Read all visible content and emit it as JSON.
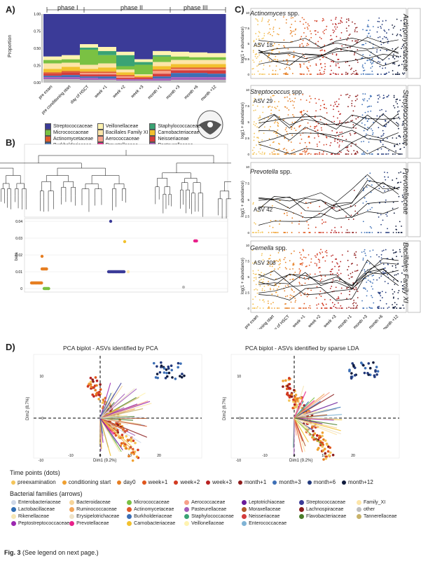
{
  "figure": {
    "caption_label": "Fig. 3",
    "caption_text": "(See legend on next page.)"
  },
  "panelA": {
    "label": "A)",
    "phases": [
      "phase I",
      "phase II",
      "phase III"
    ],
    "ylabel": "Proportion",
    "yticks": [
      "0.00",
      "0.25",
      "0.50",
      "0.75",
      "1.00"
    ],
    "xticks": [
      "pre exam",
      "pre conditioning start",
      "day of HSCT",
      "week +1",
      "week +2",
      "week +3",
      "month +1",
      "month +3",
      "month +6",
      "month +12"
    ],
    "legend": [
      {
        "name": "Streptococcaceae",
        "color": "#3b3b98"
      },
      {
        "name": "Veillonellaceae",
        "color": "#fff3b0"
      },
      {
        "name": "Staphylococcaceae",
        "color": "#3aa374"
      },
      {
        "name": "Micrococcaceae",
        "color": "#7ac143"
      },
      {
        "name": "Bacillales Family XI",
        "color": "#fde5a8"
      },
      {
        "name": "Carnobacteriaceae",
        "color": "#f2c12e"
      },
      {
        "name": "Actinomycetaceae",
        "color": "#e05a2b"
      },
      {
        "name": "Aerococcaceae",
        "color": "#f7a08a"
      },
      {
        "name": "Neisseriaceae",
        "color": "#d43c3c"
      },
      {
        "name": "Burkholderiaceae",
        "color": "#3d6fb6"
      },
      {
        "name": "Prevotellaceae",
        "color": "#e8208a"
      },
      {
        "name": "Pasteurellaceae",
        "color": "#a45dba"
      },
      {
        "name": "other",
        "color": "#bdbdbd"
      }
    ]
  },
  "panelB": {
    "label": "B)",
    "ylabel": "beta",
    "yticks": [
      "0",
      "0.01",
      "0.02",
      "0.03",
      "0.04"
    ]
  },
  "panelC": {
    "label": "C)",
    "ylabel": "log(1 + abundance)",
    "facets": [
      {
        "title_italic": "Actinomyces",
        "title_rest": " spp.",
        "asv": "ASV 18",
        "family": "Actinomycetaceae",
        "yticks": [
          "0",
          "2.5",
          "5",
          "7.5",
          "10"
        ]
      },
      {
        "title_italic": "Streptococcus",
        "title_rest": " spp.",
        "asv": "ASV 29",
        "family": "Streptococcaceae",
        "yticks": [
          "0",
          "2.5",
          "5",
          "7.5",
          "10"
        ]
      },
      {
        "title_italic": "Prevotella",
        "title_rest": " spp.",
        "asv": "ASV 42",
        "family": "Prevotellaceae",
        "yticks": [
          "0",
          "2.5",
          "5",
          "7.5",
          "10"
        ]
      },
      {
        "title_italic": "Gemella",
        "title_rest": " spp.",
        "asv": "ASV 208",
        "family": "Bacillales Family XI",
        "yticks": [
          "0",
          "2.5",
          "5",
          "7.5",
          "10"
        ]
      }
    ],
    "xticks": [
      "pre exam",
      "pre conditioning start",
      "day of HSCT",
      "week +1",
      "week +2",
      "week +3",
      "month +1",
      "month +3",
      "month +6",
      "month +12"
    ]
  },
  "panelD": {
    "label": "D)",
    "left_title": "PCA biplot - ASVs identified by PCA",
    "right_title": "PCA biplot - ASVs identified by sparse LDA",
    "xlabel": "Dim1 (9.2%)",
    "ylabel": "Dim2 (8.7%)",
    "xticks": [
      "-10",
      "0",
      "10",
      "20"
    ],
    "yticks": [
      "10",
      "0",
      "-10"
    ],
    "timepoints_title": "Time points (dots)",
    "timepoints": [
      {
        "name": "preexamination",
        "color": "#f4c55a"
      },
      {
        "name": "conditioning start",
        "color": "#f0a030"
      },
      {
        "name": "day0",
        "color": "#e67e22"
      },
      {
        "name": "week+1",
        "color": "#e0561c"
      },
      {
        "name": "week+2",
        "color": "#d23a21"
      },
      {
        "name": "week+3",
        "color": "#b82121"
      },
      {
        "name": "month+1",
        "color": "#8e1b1b"
      },
      {
        "name": "month+3",
        "color": "#3d6fb6"
      },
      {
        "name": "month+6",
        "color": "#233a7d"
      },
      {
        "name": "month+12",
        "color": "#0e1a3c"
      }
    ],
    "families_title": "Bacterial families (arrows)",
    "families": [
      {
        "name": "Enterobacteriaceae",
        "color": "#cfd8e8"
      },
      {
        "name": "Bacteroidaceae",
        "color": "#f7d59a"
      },
      {
        "name": "Micrococcaceae",
        "color": "#7ac143"
      },
      {
        "name": "Aerococcaceae",
        "color": "#f7a08a"
      },
      {
        "name": "Leptotrichiaceae",
        "color": "#6a1b9a"
      },
      {
        "name": "Streptococcaceae",
        "color": "#3b3b98"
      },
      {
        "name": "Family_XI",
        "color": "#fde5a8"
      },
      {
        "name": "Lactobacillaceae",
        "color": "#2f6db4"
      },
      {
        "name": "Ruminococcaceae",
        "color": "#f2a65a"
      },
      {
        "name": "Actinomycetaceae",
        "color": "#e05a2b"
      },
      {
        "name": "Pasteurellaceae",
        "color": "#a45dba"
      },
      {
        "name": "Moraxellaceae",
        "color": "#b05a2b"
      },
      {
        "name": "Lachnospiraceae",
        "color": "#8a1c1c"
      },
      {
        "name": "other",
        "color": "#bdbdbd"
      },
      {
        "name": "Rikenellaceae",
        "color": "#f6e6b4"
      },
      {
        "name": "Erysipelotrichaceae",
        "color": "#efe3c8"
      },
      {
        "name": "Burkholderiaceae",
        "color": "#3d6fb6"
      },
      {
        "name": "Staphylococcaceae",
        "color": "#3aa374"
      },
      {
        "name": "Neisseriaceae",
        "color": "#d43c3c"
      },
      {
        "name": "Flavobacteriaceae",
        "color": "#4a7d2a"
      },
      {
        "name": "Tannerellaceae",
        "color": "#c9b36a"
      },
      {
        "name": "Peptostreptococcaceae",
        "color": "#9c27b0"
      },
      {
        "name": "Prevotellaceae",
        "color": "#e8208a"
      },
      {
        "name": "Carnobacteriaceae",
        "color": "#f2c12e"
      },
      {
        "name": "Veillonellaceae",
        "color": "#fff3b0"
      },
      {
        "name": "Enterococcaceae",
        "color": "#7fb3d5"
      }
    ]
  }
}
